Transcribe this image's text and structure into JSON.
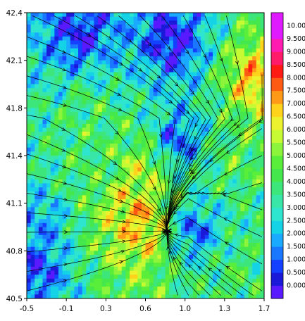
{
  "chart_data": {
    "type": "heatmap",
    "title": "",
    "xlabel": "",
    "ylabel": "",
    "xlim": [
      -0.5,
      1.7
    ],
    "ylim": [
      40.5,
      42.4
    ],
    "x_ticks": [
      "-0.5",
      "-0.1",
      "0.3",
      "0.6",
      "1.0",
      "1.3",
      "1.7"
    ],
    "y_ticks": [
      "40.5",
      "40.8",
      "41.1",
      "41.4",
      "41.8",
      "42.1",
      "42.4"
    ],
    "colorbar": {
      "levels": [
        "0.000",
        "0.500",
        "1.000",
        "1.500",
        "2.000",
        "2.500",
        "3.000",
        "3.500",
        "4.000",
        "4.500",
        "5.000",
        "5.500",
        "6.000",
        "6.500",
        "7.000",
        "7.500",
        "8.000",
        "8.500",
        "9.000",
        "9.500",
        "10.00"
      ],
      "colors": [
        "#5a1aff",
        "#1a1ad8",
        "#1440ff",
        "#1a78ff",
        "#1aaaff",
        "#15d3e6",
        "#2ee6d0",
        "#38e6a8",
        "#3ce67a",
        "#44e84c",
        "#58ee3a",
        "#8cf43a",
        "#c8fa34",
        "#ecf22e",
        "#ffd21c",
        "#ff9a18",
        "#ff5a14",
        "#ff1a14",
        "#ff1a6a",
        "#ff1ab0",
        "#e01aff"
      ],
      "extra_cap_color": "#e01aff"
    },
    "field_centers": [
      {
        "x": 0.4,
        "y": 41.15,
        "value": 6.5
      },
      {
        "x": 0.52,
        "y": 41.05,
        "value": 8.0
      },
      {
        "x": 0.55,
        "y": 40.95,
        "value": 7.0
      },
      {
        "x": 0.55,
        "y": 41.35,
        "value": 6.2
      },
      {
        "x": 1.6,
        "y": 41.95,
        "value": 7.5
      },
      {
        "x": 1.45,
        "y": 41.45,
        "value": 4.8
      },
      {
        "x": 1.4,
        "y": 40.65,
        "value": 4.5
      },
      {
        "x": 0.05,
        "y": 41.75,
        "value": 4.5
      },
      {
        "x": 0.2,
        "y": 41.35,
        "value": 4.2
      },
      {
        "x": -0.35,
        "y": 41.0,
        "value": 2.2
      },
      {
        "x": 0.9,
        "y": 41.55,
        "value": 1.2
      },
      {
        "x": 0.85,
        "y": 42.2,
        "value": 0.4
      },
      {
        "x": 0.0,
        "y": 42.25,
        "value": 0.8
      },
      {
        "x": -0.4,
        "y": 40.7,
        "value": 1.0
      },
      {
        "x": 1.05,
        "y": 40.95,
        "value": 1.2
      }
    ]
  }
}
